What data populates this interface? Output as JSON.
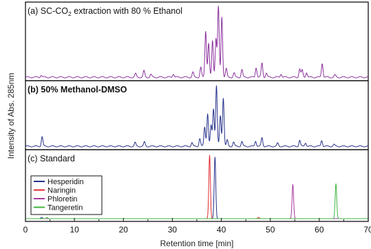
{
  "chart_data": {
    "type": "line",
    "xlabel": "Retention time [min]",
    "ylabel": "Intensity of Abs. 285nm",
    "xlim": [
      0,
      70
    ],
    "xticks": [
      "0",
      "10",
      "20",
      "30",
      "40",
      "50",
      "60",
      "70"
    ],
    "panels": [
      {
        "label_prefix": "(a) SC-CO",
        "label_sub": "2",
        "label_suffix": " extraction with 80 % Ethanol",
        "label_bold": false,
        "series": [
          {
            "color": "#8a2f9c",
            "baseline_level": 0.02,
            "peaks": [
              {
                "t": 3.2,
                "h": 0.03
              },
              {
                "t": 22.5,
                "h": 0.05
              },
              {
                "t": 24.2,
                "h": 0.09
              },
              {
                "t": 25.6,
                "h": 0.04
              },
              {
                "t": 30.2,
                "h": 0.05
              },
              {
                "t": 34.2,
                "h": 0.07
              },
              {
                "t": 35.8,
                "h": 0.14
              },
              {
                "t": 36.8,
                "h": 0.66
              },
              {
                "t": 37.4,
                "h": 0.48
              },
              {
                "t": 38.2,
                "h": 0.52
              },
              {
                "t": 38.9,
                "h": 0.55
              },
              {
                "t": 39.4,
                "h": 1.0
              },
              {
                "t": 40.1,
                "h": 0.86
              },
              {
                "t": 41.0,
                "h": 0.12
              },
              {
                "t": 42.6,
                "h": 0.06
              },
              {
                "t": 44.2,
                "h": 0.11
              },
              {
                "t": 47.1,
                "h": 0.14
              },
              {
                "t": 48.3,
                "h": 0.2
              },
              {
                "t": 49.2,
                "h": 0.06
              },
              {
                "t": 52.2,
                "h": 0.05
              },
              {
                "t": 56.0,
                "h": 0.12
              },
              {
                "t": 56.5,
                "h": 0.1
              },
              {
                "t": 57.4,
                "h": 0.07
              },
              {
                "t": 60.6,
                "h": 0.2
              },
              {
                "t": 63.2,
                "h": 0.03
              }
            ]
          }
        ]
      },
      {
        "label_prefix": "(b) 50% Methanol-DMSO",
        "label_sub": "",
        "label_suffix": "",
        "label_bold": true,
        "series": [
          {
            "color": "#24308a",
            "baseline_level": 0.02,
            "peaks": [
              {
                "t": 3.4,
                "h": 0.16
              },
              {
                "t": 22.4,
                "h": 0.06
              },
              {
                "t": 24.3,
                "h": 0.07
              },
              {
                "t": 34.0,
                "h": 0.06
              },
              {
                "t": 35.6,
                "h": 0.13
              },
              {
                "t": 36.6,
                "h": 0.32
              },
              {
                "t": 37.2,
                "h": 0.54
              },
              {
                "t": 37.9,
                "h": 0.34
              },
              {
                "t": 38.4,
                "h": 0.62
              },
              {
                "t": 39.0,
                "h": 1.0
              },
              {
                "t": 39.8,
                "h": 0.5
              },
              {
                "t": 40.4,
                "h": 0.8
              },
              {
                "t": 41.2,
                "h": 0.1
              },
              {
                "t": 42.5,
                "h": 0.07
              },
              {
                "t": 44.2,
                "h": 0.08
              },
              {
                "t": 47.0,
                "h": 0.09
              },
              {
                "t": 48.3,
                "h": 0.14
              },
              {
                "t": 51.5,
                "h": 0.05
              },
              {
                "t": 56.0,
                "h": 0.1
              },
              {
                "t": 57.2,
                "h": 0.06
              },
              {
                "t": 60.5,
                "h": 0.1
              },
              {
                "t": 63.0,
                "h": 0.03
              }
            ]
          }
        ]
      },
      {
        "label_prefix": "(c) Standard",
        "label_sub": "",
        "label_suffix": "",
        "label_bold": false,
        "series": [
          {
            "name": "Hesperidin",
            "color": "#24308a",
            "baseline_level": 0.0,
            "peaks": [
              {
                "t": 38.7,
                "h": 0.97
              },
              {
                "t": 3.3,
                "h": 0.02
              }
            ]
          },
          {
            "name": "Naringin",
            "color": "#e0282e",
            "baseline_level": 0.0,
            "peaks": [
              {
                "t": 37.6,
                "h": 1.0
              },
              {
                "t": 47.6,
                "h": 0.02
              }
            ]
          },
          {
            "name": "Phloretin",
            "color": "#a8389e",
            "baseline_level": 0.0,
            "peaks": [
              {
                "t": 54.6,
                "h": 0.54
              }
            ]
          },
          {
            "name": "Tangeretin",
            "color": "#3cb43c",
            "baseline_level": 0.0,
            "peaks": [
              {
                "t": 63.4,
                "h": 0.55
              },
              {
                "t": 4.4,
                "h": 0.02
              }
            ]
          }
        ]
      }
    ],
    "legend_position": "bottom-left",
    "grid": false
  }
}
